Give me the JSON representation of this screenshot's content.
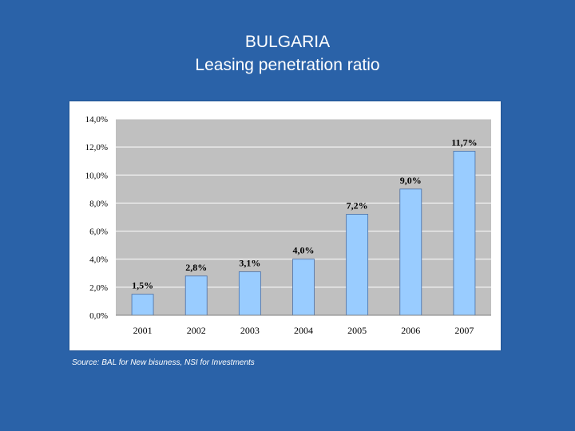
{
  "slide": {
    "title_line1": "BULGARIA",
    "title_line2": "Leasing penetration ratio",
    "source": "Source: BAL for New bisuness, NSI for Investments"
  },
  "colors": {
    "background": "#2a62a8",
    "plot_area": "#c0c0c0",
    "bar_fill": "#99ccff",
    "bar_stroke": "#4a6fa5"
  },
  "chart_data": {
    "type": "bar",
    "categories": [
      "2001",
      "2002",
      "2003",
      "2004",
      "2005",
      "2006",
      "2007"
    ],
    "values": [
      1.5,
      2.8,
      3.1,
      4.0,
      7.2,
      9.0,
      11.7
    ],
    "data_labels": [
      "1,5%",
      "2,8%",
      "3,1%",
      "4,0%",
      "7,2%",
      "9,0%",
      "11,7%"
    ],
    "yticks": [
      0,
      2,
      4,
      6,
      8,
      10,
      12,
      14
    ],
    "ytick_labels": [
      "0,0%",
      "2,0%",
      "4,0%",
      "6,0%",
      "8,0%",
      "10,0%",
      "12,0%",
      "14,0%"
    ],
    "ylim": [
      0,
      14
    ],
    "grid": true,
    "title": "",
    "xlabel": "",
    "ylabel": ""
  }
}
